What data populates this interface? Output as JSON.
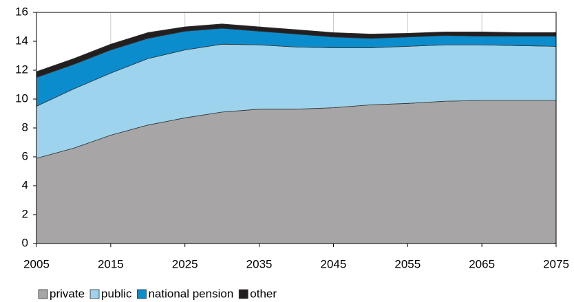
{
  "chart_data": {
    "type": "stacked_area",
    "x": [
      2005,
      2010,
      2015,
      2020,
      2025,
      2030,
      2035,
      2040,
      2045,
      2050,
      2055,
      2060,
      2065,
      2070,
      2075
    ],
    "series": [
      {
        "name": "private",
        "color": "#a7a5a5",
        "values": [
          5.9,
          6.6,
          7.5,
          8.2,
          8.7,
          9.1,
          9.3,
          9.3,
          9.4,
          9.6,
          9.7,
          9.85,
          9.9,
          9.9,
          9.9
        ]
      },
      {
        "name": "public",
        "color": "#9dd3ec",
        "values": [
          3.6,
          4.1,
          4.3,
          4.6,
          4.7,
          4.7,
          4.45,
          4.3,
          4.15,
          3.95,
          3.95,
          3.9,
          3.85,
          3.8,
          3.75
        ]
      },
      {
        "name": "national pension",
        "color": "#0b8dcd",
        "values": [
          2.0,
          1.7,
          1.6,
          1.4,
          1.3,
          1.1,
          0.95,
          0.9,
          0.75,
          0.65,
          0.65,
          0.65,
          0.6,
          0.65,
          0.7
        ]
      },
      {
        "name": "other",
        "color": "#231f20",
        "values": [
          0.4,
          0.4,
          0.4,
          0.4,
          0.3,
          0.3,
          0.3,
          0.3,
          0.3,
          0.3,
          0.25,
          0.25,
          0.3,
          0.25,
          0.25
        ]
      }
    ],
    "xlim": [
      2005,
      2075
    ],
    "xticks": [
      2005,
      2015,
      2025,
      2035,
      2045,
      2055,
      2065,
      2075
    ],
    "ylim": [
      0,
      16
    ],
    "yticks": [
      0,
      2,
      4,
      6,
      8,
      10,
      12,
      14,
      16
    ],
    "grid": true,
    "legend": "bottom"
  }
}
